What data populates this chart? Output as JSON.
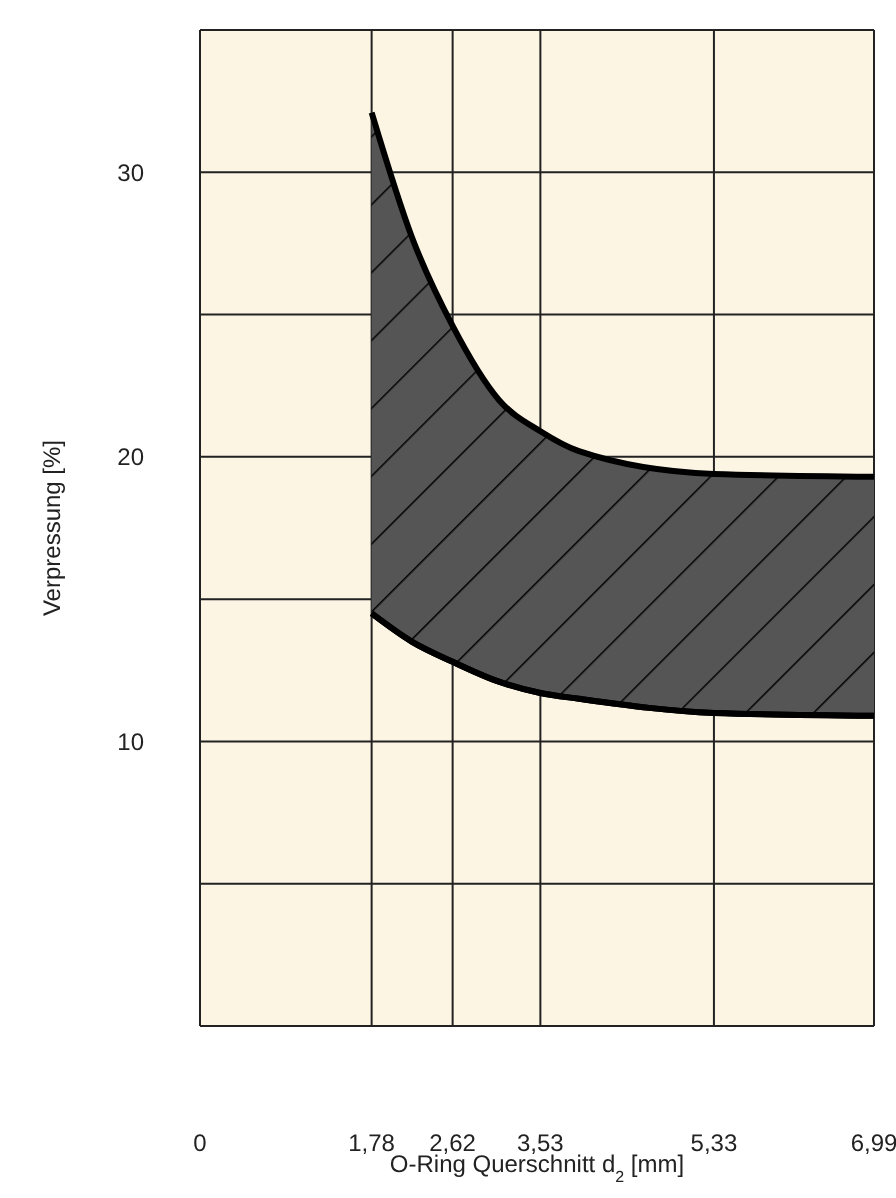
{
  "chart_data": {
    "type": "area",
    "xlabel": "O-Ring Querschnitt d$_{2}$ [mm]",
    "ylabel": "Verpressung [%]",
    "x": [
      1.78,
      2.2,
      2.62,
      3.1,
      3.53,
      3.93,
      5.33,
      6.99
    ],
    "series": [
      {
        "color": "#555555",
        "values": [
          32.1,
          27.7,
          24.6,
          22.0,
          20.9,
          20.2,
          19.4,
          19.3
        ]
      },
      {
        "type": "line",
        "color": "#000000",
        "values": [
          14.5,
          13.5,
          12.8,
          12.1,
          11.7,
          11.5,
          11.0,
          10.9
        ]
      }
    ],
    "xlim": [
      0,
      6.99
    ],
    "xticks": [
      0,
      {
        "value": 1.78,
        "label": "1,78"
      },
      {
        "value": 2.62,
        "label": "2,62"
      },
      {
        "value": 3.53,
        "label": "3,53"
      },
      {
        "value": 5.33,
        "label": "5,33"
      },
      {
        "value": 6.99,
        "label": "6,99"
      }
    ],
    "ylim": [
      0,
      35
    ],
    "yticks": [
      {
        "value": 5,
        "label": null
      },
      10,
      {
        "value": 15,
        "label": null
      },
      20,
      {
        "value": 25,
        "label": null
      },
      30,
      {
        "value": 35,
        "label": null
      }
    ],
    "grid": true
  }
}
